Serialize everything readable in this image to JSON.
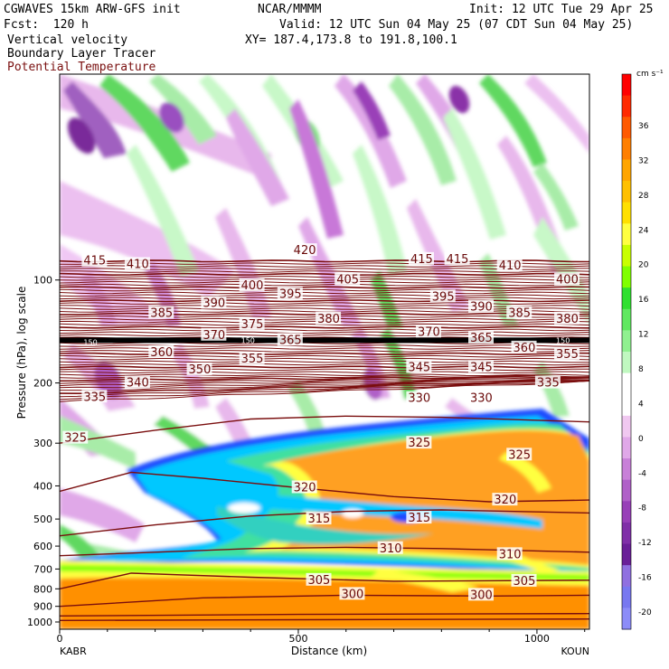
{
  "header": {
    "model": "CGWAVES 15km ARW-GFS init",
    "org": "NCAR/MMMM",
    "init": "Init: 12 UTC Tue 29 Apr 25",
    "fcst": "Fcst:  120 h",
    "valid": "Valid: 12 UTC Sun 04 May 25 (07 CDT Sun 04 May 25)",
    "xy": "XY= 187.4,173.8 to 191.8,100.1",
    "field1": "Vertical velocity",
    "field2": "Boundary Layer Tracer",
    "field3": "Potential Temperature"
  },
  "chart_data": {
    "type": "heatmap",
    "title": "",
    "xlabel": "Distance (km)",
    "ylabel": "Pressure (hPa), log scale",
    "xlim": [
      0,
      1110
    ],
    "ylim": [
      1050,
      25
    ],
    "y_scale": "log",
    "x_ticks": [
      0,
      500,
      1000
    ],
    "y_ticks": [
      100,
      200,
      300,
      400,
      500,
      600,
      700,
      800,
      900,
      1000
    ],
    "x_endpoint_labels": [
      "KABR",
      "KOUN"
    ],
    "colorbar": {
      "units": "cm s⁻¹",
      "labels": [
        36,
        32,
        28,
        24,
        20,
        16,
        12,
        8,
        4,
        0,
        -4,
        -8,
        -12,
        -16,
        -20
      ],
      "colors": [
        "#ff0000",
        "#ff2a00",
        "#ff5a00",
        "#ff7f00",
        "#ffa500",
        "#ffc000",
        "#ffe000",
        "#ffff40",
        "#c8ff00",
        "#80ff00",
        "#30e030",
        "#60e860",
        "#90f090",
        "#c0f8c0",
        "#ffffff",
        "#ffffff",
        "#f0c8f0",
        "#e0a8e8",
        "#c880d8",
        "#b060c8",
        "#9840b8",
        "#8030a8",
        "#6a2098",
        "#9070e0",
        "#7878f0",
        "#8c8cf8"
      ]
    },
    "theta_labels": [
      {
        "x": 50,
        "p": 88,
        "v": "415"
      },
      {
        "x": 140,
        "p": 90,
        "v": "410"
      },
      {
        "x": 490,
        "p": 82,
        "v": "420"
      },
      {
        "x": 735,
        "p": 87,
        "v": "415"
      },
      {
        "x": 810,
        "p": 87,
        "v": "415"
      },
      {
        "x": 920,
        "p": 91,
        "v": "410"
      },
      {
        "x": 1040,
        "p": 100,
        "v": "400"
      },
      {
        "x": 380,
        "p": 104,
        "v": "400"
      },
      {
        "x": 580,
        "p": 100,
        "v": "405"
      },
      {
        "x": 460,
        "p": 110,
        "v": "395"
      },
      {
        "x": 780,
        "p": 112,
        "v": "395"
      },
      {
        "x": 300,
        "p": 117,
        "v": "390"
      },
      {
        "x": 860,
        "p": 120,
        "v": "390"
      },
      {
        "x": 190,
        "p": 125,
        "v": "385"
      },
      {
        "x": 940,
        "p": 125,
        "v": "385"
      },
      {
        "x": 540,
        "p": 130,
        "v": "380"
      },
      {
        "x": 1040,
        "p": 130,
        "v": "380"
      },
      {
        "x": 380,
        "p": 135,
        "v": "375"
      },
      {
        "x": 300,
        "p": 145,
        "v": "370"
      },
      {
        "x": 750,
        "p": 142,
        "v": "370"
      },
      {
        "x": 860,
        "p": 148,
        "v": "365"
      },
      {
        "x": 460,
        "p": 150,
        "v": "365"
      },
      {
        "x": 190,
        "p": 163,
        "v": "360"
      },
      {
        "x": 950,
        "p": 158,
        "v": "360"
      },
      {
        "x": 380,
        "p": 170,
        "v": "355"
      },
      {
        "x": 1040,
        "p": 165,
        "v": "355"
      },
      {
        "x": 270,
        "p": 183,
        "v": "350"
      },
      {
        "x": 730,
        "p": 180,
        "v": "345"
      },
      {
        "x": 860,
        "p": 180,
        "v": "345"
      },
      {
        "x": 140,
        "p": 200,
        "v": "340"
      },
      {
        "x": 1000,
        "p": 200,
        "v": "335"
      },
      {
        "x": 50,
        "p": 220,
        "v": "335"
      },
      {
        "x": 730,
        "p": 222,
        "v": "330"
      },
      {
        "x": 860,
        "p": 222,
        "v": "330"
      },
      {
        "x": 10,
        "p": 290,
        "v": "325"
      },
      {
        "x": 730,
        "p": 300,
        "v": "325"
      },
      {
        "x": 940,
        "p": 325,
        "v": "325"
      },
      {
        "x": 490,
        "p": 405,
        "v": "320"
      },
      {
        "x": 910,
        "p": 440,
        "v": "320"
      },
      {
        "x": 520,
        "p": 500,
        "v": "315"
      },
      {
        "x": 730,
        "p": 497,
        "v": "315"
      },
      {
        "x": 670,
        "p": 610,
        "v": "310"
      },
      {
        "x": 920,
        "p": 635,
        "v": "310"
      },
      {
        "x": 520,
        "p": 755,
        "v": "305"
      },
      {
        "x": 950,
        "p": 760,
        "v": "305"
      },
      {
        "x": 590,
        "p": 830,
        "v": "300"
      },
      {
        "x": 860,
        "p": 835,
        "v": "300"
      }
    ],
    "trop_labels": [
      {
        "x": 50,
        "p": 152,
        "v": "150"
      },
      {
        "x": 380,
        "p": 150,
        "v": "150"
      },
      {
        "x": 1040,
        "p": 150,
        "v": "150"
      }
    ]
  }
}
